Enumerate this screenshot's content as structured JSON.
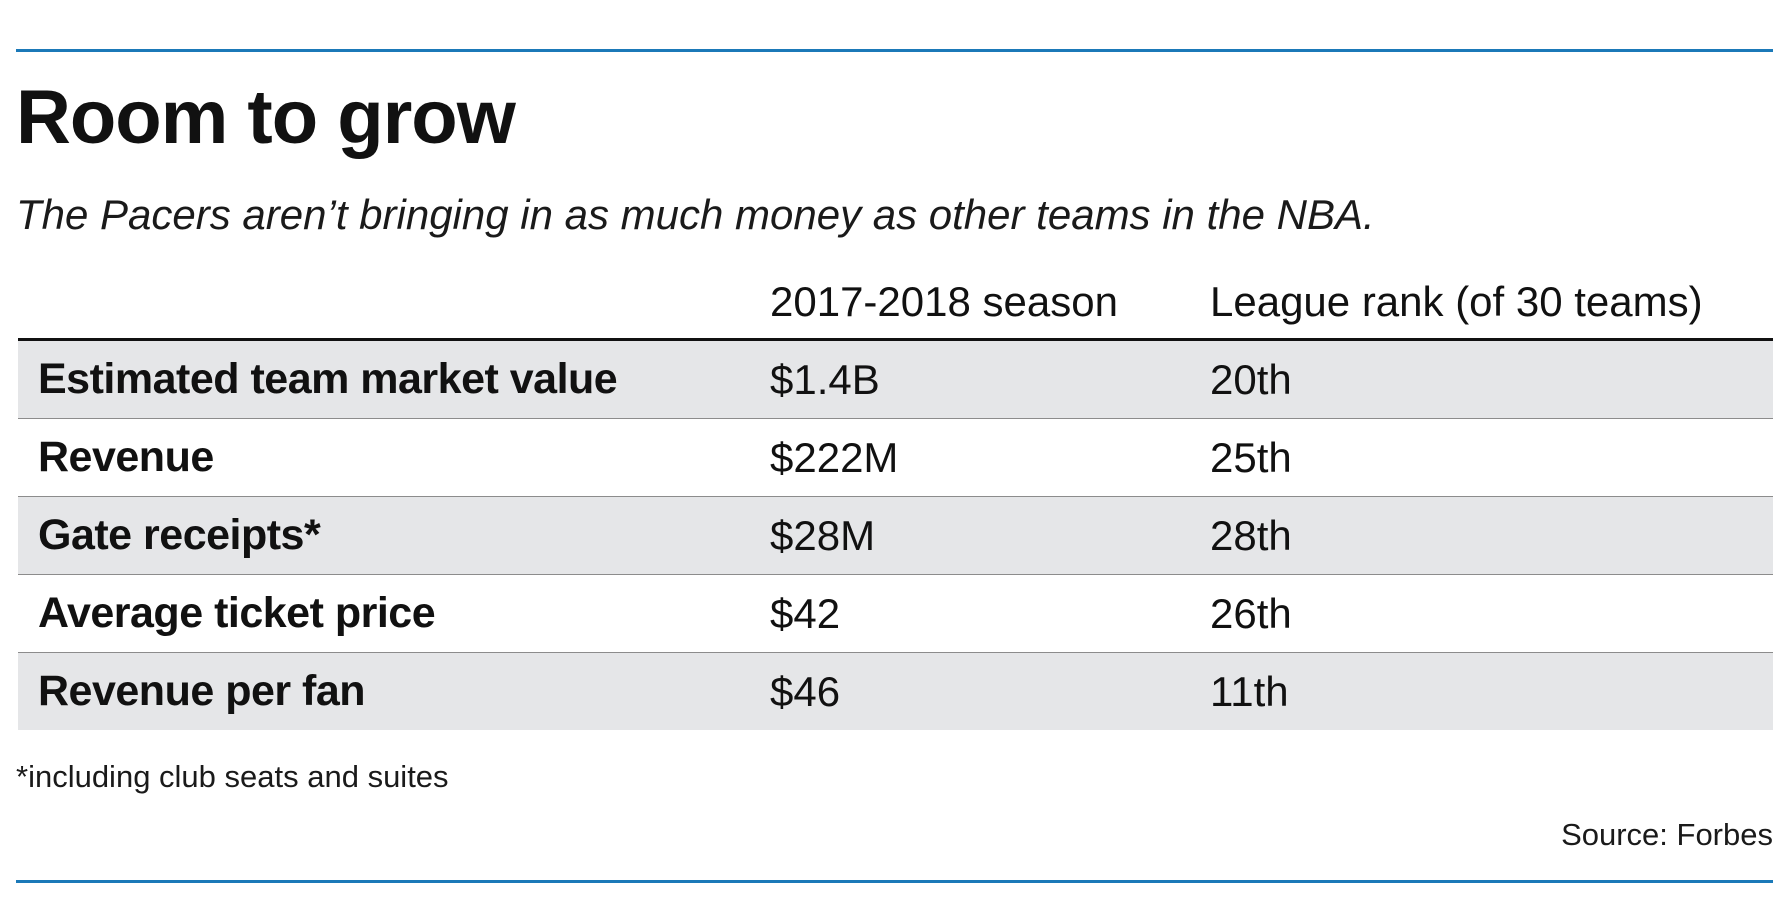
{
  "colors": {
    "rule": "#1b79b8",
    "row_shade": "#e5e6e8",
    "text": "#111111"
  },
  "chart_data": {
    "type": "table",
    "title": "Room to grow",
    "subtitle": "The Pacers aren’t bringing in as much money as other teams in the NBA.",
    "columns": [
      "",
      "2017-2018 season",
      "League rank (of 30 teams)"
    ],
    "rows": [
      {
        "metric": "Estimated team market value",
        "value": "$1.4B",
        "rank": "20th"
      },
      {
        "metric": "Revenue",
        "value": "$222M",
        "rank": "25th"
      },
      {
        "metric": "Gate receipts*",
        "value": "$28M",
        "rank": "28th"
      },
      {
        "metric": "Average ticket price",
        "value": "$42",
        "rank": "26th"
      },
      {
        "metric": "Revenue per fan",
        "value": "$46",
        "rank": "11th"
      }
    ],
    "footnote": "*including club seats and suites",
    "source": "Source: Forbes"
  }
}
